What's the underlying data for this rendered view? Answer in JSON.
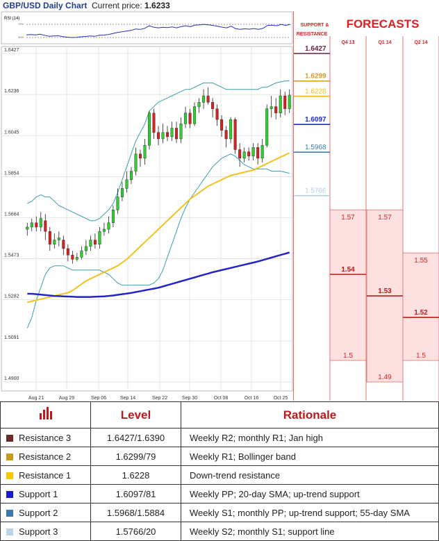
{
  "header": {
    "title": "GBP/USD Daily Chart",
    "price_label": "Current price:",
    "price_value": "1.6233"
  },
  "rsi": {
    "label": "RSI (14)",
    "upper": "70%",
    "lower": "30%"
  },
  "colors": {
    "bull": "#2fcf2f",
    "bear": "#d92020",
    "bollinger": "#3aa0a8",
    "sma_yellow": "#f2c21b",
    "sma_blue": "#2424c8",
    "accent_red": "#e02020",
    "res3": "#6b1f3a",
    "res2": "#d99a2a",
    "res1": "#f2c21b",
    "sup1": "#1a2bd0",
    "sup2": "#3a7fa8",
    "sup3": "#a8d0e8"
  },
  "forecasts": {
    "title": "FORECASTS",
    "sr_label_1": "SUPPORT &",
    "sr_label_2": "RESISTANCE",
    "columns": [
      {
        "label": "Q4 13",
        "max": "1.57",
        "avg": "1.54",
        "min": "1.5",
        "range": [
          1.5,
          1.57
        ],
        "mean": 1.54
      },
      {
        "label": "Q1 14",
        "max": "1.57",
        "avg": "1.53",
        "min": "1.49",
        "range": [
          1.49,
          1.57
        ],
        "mean": 1.53
      },
      {
        "label": "Q2 14",
        "max": "1.55",
        "avg": "1.52",
        "min": "1.5",
        "range": [
          1.5,
          1.55
        ],
        "mean": 1.52
      }
    ]
  },
  "table": {
    "header": {
      "level": "Level",
      "rationale": "Rationale"
    },
    "rows": [
      {
        "label": "Resistance 3",
        "level": "1.6427/1.6390",
        "rationale": "Weekly R2; monthly R1; Jan high",
        "color": "#6b2a2a"
      },
      {
        "label": "Resistance 2",
        "level": "1.6299/79",
        "rationale": "Weekly R1; Bollinger band",
        "color": "#c99a1a"
      },
      {
        "label": "Resistance 1",
        "level": "1.6228",
        "rationale": "Down-trend resistance",
        "color": "#f5c800"
      },
      {
        "label": "Support 1",
        "level": "1.6097/81",
        "rationale": "Weekly PP; 20-day SMA; up-trend support",
        "color": "#1a1ad0"
      },
      {
        "label": "Support 2",
        "level": "1.5968/1.5884",
        "rationale": "Weekly S1; monthly PP; up-trend support; 55-day SMA",
        "color": "#3a78b0"
      },
      {
        "label": "Support 3",
        "level": "1.5766/20",
        "rationale": "Weekly S2; monthly S1; support line",
        "color": "#b8d4ec"
      }
    ]
  },
  "chart_data": {
    "type": "candlestick",
    "title": "GBP/USD Daily Chart",
    "y_ticks": [
      "1.6427",
      "1.6236",
      "1.6045",
      "1.5854",
      "1.5664",
      "1.5473",
      "1.5282",
      "1.5091",
      "1.4900"
    ],
    "ylim": [
      1.49,
      1.6427
    ],
    "x_ticks": [
      "Aug 21",
      "Aug 29",
      "Sep 06",
      "Sep 14",
      "Sep 22",
      "Sep 30",
      "Oct 08",
      "Oct 16",
      "Oct 25"
    ],
    "levels": [
      {
        "name": "Resistance 3",
        "value": 1.6427,
        "label": "1.6427"
      },
      {
        "name": "Resistance 2",
        "value": 1.6299,
        "label": "1.6299"
      },
      {
        "name": "Resistance 1",
        "value": 1.6228,
        "label": "1.6228"
      },
      {
        "name": "Support 1",
        "value": 1.6097,
        "label": "1.6097"
      },
      {
        "name": "Support 2",
        "value": 1.5968,
        "label": "1.5968"
      },
      {
        "name": "Support 3",
        "value": 1.5766,
        "label": "1.5766"
      }
    ],
    "candles": [
      [
        1.561,
        1.562,
        1.564,
        1.558
      ],
      [
        1.562,
        1.564,
        1.566,
        1.56
      ],
      [
        1.564,
        1.562,
        1.567,
        1.56
      ],
      [
        1.562,
        1.566,
        1.569,
        1.56
      ],
      [
        1.565,
        1.56,
        1.568,
        1.556
      ],
      [
        1.56,
        1.554,
        1.562,
        1.551
      ],
      [
        1.554,
        1.556,
        1.559,
        1.552
      ],
      [
        1.556,
        1.557,
        1.56,
        1.553
      ],
      [
        1.556,
        1.552,
        1.558,
        1.549
      ],
      [
        1.552,
        1.549,
        1.554,
        1.546
      ],
      [
        1.549,
        1.547,
        1.551,
        1.545
      ],
      [
        1.547,
        1.548,
        1.55,
        1.546
      ],
      [
        1.548,
        1.551,
        1.553,
        1.547
      ],
      [
        1.551,
        1.553,
        1.556,
        1.549
      ],
      [
        1.553,
        1.556,
        1.558,
        1.551
      ],
      [
        1.556,
        1.554,
        1.559,
        1.552
      ],
      [
        1.554,
        1.56,
        1.562,
        1.552
      ],
      [
        1.56,
        1.561,
        1.564,
        1.558
      ],
      [
        1.561,
        1.564,
        1.567,
        1.559
      ],
      [
        1.564,
        1.57,
        1.572,
        1.562
      ],
      [
        1.57,
        1.576,
        1.58,
        1.568
      ],
      [
        1.576,
        1.58,
        1.583,
        1.574
      ],
      [
        1.58,
        1.584,
        1.588,
        1.578
      ],
      [
        1.584,
        1.588,
        1.59,
        1.582
      ],
      [
        1.588,
        1.596,
        1.599,
        1.586
      ],
      [
        1.596,
        1.594,
        1.598,
        1.59
      ],
      [
        1.594,
        1.6,
        1.603,
        1.591
      ],
      [
        1.6,
        1.615,
        1.616,
        1.598
      ],
      [
        1.615,
        1.606,
        1.617,
        1.603
      ],
      [
        1.606,
        1.603,
        1.609,
        1.6
      ],
      [
        1.603,
        1.606,
        1.61,
        1.601
      ],
      [
        1.606,
        1.604,
        1.609,
        1.602
      ],
      [
        1.604,
        1.608,
        1.611,
        1.602
      ],
      [
        1.608,
        1.603,
        1.611,
        1.601
      ],
      [
        1.603,
        1.61,
        1.613,
        1.601
      ],
      [
        1.61,
        1.615,
        1.618,
        1.608
      ],
      [
        1.615,
        1.61,
        1.617,
        1.608
      ],
      [
        1.61,
        1.618,
        1.62,
        1.609
      ],
      [
        1.618,
        1.62,
        1.622,
        1.615
      ],
      [
        1.62,
        1.623,
        1.626,
        1.617
      ],
      [
        1.623,
        1.62,
        1.627,
        1.619
      ],
      [
        1.62,
        1.617,
        1.622,
        1.613
      ],
      [
        1.617,
        1.612,
        1.619,
        1.609
      ],
      [
        1.612,
        1.607,
        1.614,
        1.604
      ],
      [
        1.607,
        1.603,
        1.609,
        1.599
      ],
      [
        1.603,
        1.612,
        1.613,
        1.601
      ],
      [
        1.612,
        1.598,
        1.613,
        1.596
      ],
      [
        1.598,
        1.594,
        1.601,
        1.59
      ],
      [
        1.594,
        1.597,
        1.599,
        1.592
      ],
      [
        1.597,
        1.595,
        1.599,
        1.593
      ],
      [
        1.595,
        1.599,
        1.601,
        1.593
      ],
      [
        1.599,
        1.594,
        1.601,
        1.591
      ],
      [
        1.594,
        1.6,
        1.603,
        1.592
      ],
      [
        1.6,
        1.617,
        1.619,
        1.599
      ],
      [
        1.617,
        1.618,
        1.623,
        1.613
      ],
      [
        1.618,
        1.615,
        1.622,
        1.612
      ],
      [
        1.615,
        1.623,
        1.626,
        1.613
      ],
      [
        1.623,
        1.617,
        1.625,
        1.614
      ],
      [
        1.617,
        1.6233,
        1.626,
        1.615
      ]
    ],
    "bb_upper": [
      1.573,
      1.574,
      1.576,
      1.577,
      1.576,
      1.576,
      1.574,
      1.572,
      1.571,
      1.57,
      1.569,
      1.568,
      1.567,
      1.566,
      1.565,
      1.565,
      1.566,
      1.568,
      1.57,
      1.573,
      1.578,
      1.584,
      1.59,
      1.596,
      1.602,
      1.606,
      1.61,
      1.616,
      1.618,
      1.62,
      1.621,
      1.622,
      1.623,
      1.624,
      1.625,
      1.626,
      1.626,
      1.627,
      1.628,
      1.629,
      1.629,
      1.629,
      1.628,
      1.627,
      1.626,
      1.626,
      1.626,
      1.626,
      1.626,
      1.626,
      1.626,
      1.626,
      1.627,
      1.627,
      1.628,
      1.629,
      1.6295,
      1.6299,
      1.63
    ],
    "bb_lower": [
      1.515,
      1.52,
      1.528,
      1.534,
      1.54,
      1.543,
      1.544,
      1.544,
      1.544,
      1.543,
      1.542,
      1.542,
      1.542,
      1.542,
      1.542,
      1.542,
      1.542,
      1.541,
      1.54,
      1.538,
      1.536,
      1.535,
      1.535,
      1.535,
      1.535,
      1.535,
      1.535,
      1.535,
      1.536,
      1.538,
      1.542,
      1.548,
      1.554,
      1.56,
      1.566,
      1.571,
      1.575,
      1.578,
      1.581,
      1.584,
      1.587,
      1.59,
      1.592,
      1.594,
      1.595,
      1.596,
      1.595,
      1.593,
      1.591,
      1.59,
      1.589,
      1.589,
      1.589,
      1.589,
      1.588,
      1.588,
      1.588,
      1.5875,
      1.587
    ],
    "sma_yellow": [
      1.527,
      1.5275,
      1.528,
      1.5285,
      1.529,
      1.5295,
      1.53,
      1.5305,
      1.531,
      1.5315,
      1.5325,
      1.534,
      1.5355,
      1.537,
      1.538,
      1.539,
      1.54,
      1.541,
      1.542,
      1.543,
      1.544,
      1.5455,
      1.547,
      1.549,
      1.551,
      1.553,
      1.555,
      1.557,
      1.559,
      1.561,
      1.563,
      1.565,
      1.567,
      1.569,
      1.571,
      1.573,
      1.575,
      1.5765,
      1.578,
      1.5795,
      1.581,
      1.582,
      1.583,
      1.584,
      1.585,
      1.586,
      1.5865,
      1.587,
      1.5875,
      1.588,
      1.5885,
      1.5895,
      1.5905,
      1.5915,
      1.5925,
      1.5935,
      1.5945,
      1.5955,
      1.5965
    ],
    "sma_blue": [
      1.531,
      1.531,
      1.5308,
      1.5306,
      1.5304,
      1.5302,
      1.53,
      1.5299,
      1.5298,
      1.5297,
      1.5296,
      1.5295,
      1.5295,
      1.5295,
      1.5295,
      1.5296,
      1.5297,
      1.5298,
      1.53,
      1.5302,
      1.5305,
      1.5308,
      1.5311,
      1.5314,
      1.5318,
      1.5322,
      1.5326,
      1.533,
      1.5334,
      1.5338,
      1.5344,
      1.535,
      1.5356,
      1.5362,
      1.5368,
      1.5374,
      1.538,
      1.5386,
      1.5392,
      1.5398,
      1.5404,
      1.541,
      1.5415,
      1.542,
      1.5425,
      1.543,
      1.5435,
      1.544,
      1.5445,
      1.545,
      1.5455,
      1.546,
      1.5466,
      1.5472,
      1.5478,
      1.5484,
      1.549,
      1.5496,
      1.5502
    ]
  }
}
